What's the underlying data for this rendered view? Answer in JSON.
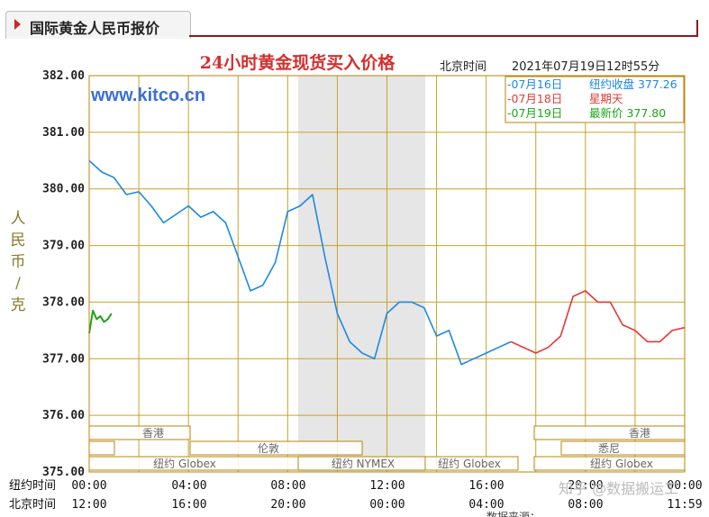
{
  "tab": {
    "title": "国际黄金人民币报价"
  },
  "chart_data": {
    "type": "line",
    "title": "24小时黄金现货买入价格",
    "timezone_label": "北京时间",
    "timestamp": "2021年07月19日12时55分",
    "watermark": "www.kitco.cn",
    "ylabel": "人民币/克",
    "ylim": [
      375,
      382
    ],
    "y_ticks": [
      "382.00",
      "381.00",
      "380.00",
      "379.00",
      "378.00",
      "377.00",
      "376.00",
      "375.00"
    ],
    "x_row_labels": [
      "纽约时间",
      "北京时间"
    ],
    "x_ticks_newyork": [
      "00:00",
      "04:00",
      "08:00",
      "12:00",
      "16:00",
      "20:00",
      "00:00"
    ],
    "x_ticks_beijing": [
      "12:00",
      "16:00",
      "20:00",
      "00:00",
      "04:00",
      "08:00",
      "11:59"
    ],
    "legend": [
      {
        "date": "-07月16日",
        "label": "纽约收盘 377.26",
        "color": "#1e88e5"
      },
      {
        "date": "-07月18日",
        "label": "星期天",
        "color": "#e53935"
      },
      {
        "date": "-07月19日",
        "label": "最新价 377.80",
        "color": "#1aa51a"
      }
    ],
    "sessions": [
      {
        "name": "香港",
        "row": 0
      },
      {
        "name": "伦敦",
        "row": 1
      },
      {
        "name": "纽约 Globex",
        "row": 2
      },
      {
        "name": "纽约 NYMEX",
        "row": 2
      },
      {
        "name": "纽约 Globex",
        "row": 2
      },
      {
        "name": "香港",
        "row": 0
      },
      {
        "name": "悉尼",
        "row": 1
      },
      {
        "name": "纽约 Globex",
        "row": 2
      }
    ],
    "series": [
      {
        "name": "07月16日",
        "color": "#1e88e5",
        "x_hours": [
          0,
          0.5,
          1,
          1.5,
          2,
          2.5,
          3,
          3.5,
          4,
          4.5,
          5,
          5.5,
          6,
          6.5,
          7,
          7.5,
          8,
          8.5,
          9,
          9.5,
          10,
          10.5,
          11,
          11.5,
          12,
          12.5,
          13,
          13.5,
          14,
          14.5,
          15,
          15.5,
          16,
          16.5,
          17
        ],
        "values": [
          380.5,
          380.3,
          380.2,
          379.9,
          379.95,
          379.7,
          379.4,
          379.55,
          379.7,
          379.5,
          379.6,
          379.4,
          378.8,
          378.2,
          378.3,
          378.7,
          379.6,
          379.7,
          379.9,
          378.8,
          377.8,
          377.3,
          377.1,
          377.0,
          377.8,
          378.0,
          378.0,
          377.9,
          377.4,
          377.5,
          376.9,
          377.0,
          377.1,
          377.2,
          377.3
        ]
      },
      {
        "name": "07月18日",
        "color": "#e53935",
        "x_hours": [
          17,
          18,
          18.5,
          19,
          19.5,
          20,
          20.5,
          21,
          21.5,
          22,
          22.5,
          23,
          23.5,
          24
        ],
        "values": [
          377.3,
          377.1,
          377.2,
          377.4,
          378.1,
          378.2,
          378.0,
          378.0,
          377.6,
          377.5,
          377.3,
          377.3,
          377.5,
          377.55
        ]
      },
      {
        "name": "07月19日",
        "color": "#1aa51a",
        "x_hours": [
          0,
          0.15,
          0.3,
          0.45,
          0.6,
          0.75,
          0.9
        ],
        "values": [
          377.45,
          377.85,
          377.7,
          377.75,
          377.65,
          377.7,
          377.8
        ]
      }
    ],
    "grid": true,
    "source_note": "数据来源：",
    "credit": "知乎 @数据搬运工"
  }
}
